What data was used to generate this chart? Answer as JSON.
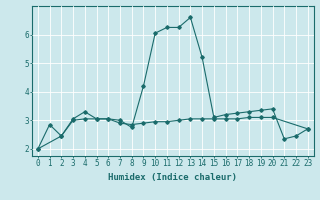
{
  "xlabel": "Humidex (Indice chaleur)",
  "x": [
    0,
    1,
    2,
    3,
    4,
    5,
    6,
    7,
    8,
    9,
    10,
    11,
    12,
    13,
    14,
    15,
    16,
    17,
    18,
    19,
    20,
    21,
    22,
    23
  ],
  "line1": [
    2.0,
    2.85,
    2.45,
    3.05,
    3.3,
    3.05,
    3.05,
    3.0,
    2.75,
    4.2,
    6.05,
    6.25,
    6.25,
    6.6,
    5.2,
    3.1,
    3.2,
    3.25,
    3.3,
    3.35,
    3.4,
    2.35,
    2.45,
    2.7
  ],
  "line3_x": [
    0,
    2,
    3,
    4,
    5,
    6,
    7,
    8,
    9,
    10,
    11,
    12,
    13,
    14,
    15,
    16,
    17,
    18,
    19,
    20,
    23
  ],
  "line3_y": [
    2.0,
    2.45,
    3.0,
    3.05,
    3.05,
    3.05,
    2.9,
    2.85,
    2.9,
    2.95,
    2.95,
    3.0,
    3.05,
    3.05,
    3.05,
    3.05,
    3.05,
    3.1,
    3.1,
    3.1,
    2.7
  ],
  "ylim": [
    1.75,
    7.0
  ],
  "xlim": [
    -0.5,
    23.5
  ],
  "bg_color": "#cce8ec",
  "line_color": "#1a6b6b",
  "grid_color": "#ffffff",
  "tick_fontsize": 5.5,
  "label_fontsize": 6.5
}
